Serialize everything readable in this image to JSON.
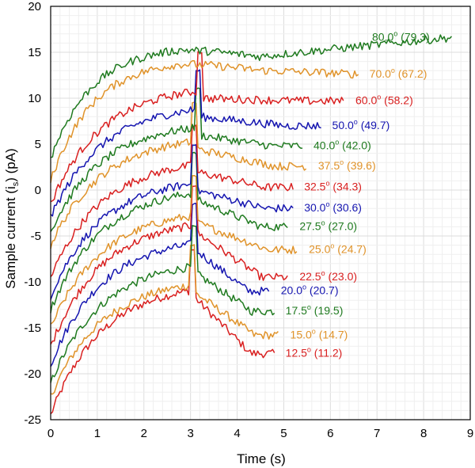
{
  "chart_data": {
    "type": "line",
    "title": "",
    "xlabel": "Time (s)",
    "ylabel_parts": [
      "Sample current (i",
      "s",
      ") (pA)"
    ],
    "xlim": [
      0,
      9
    ],
    "ylim": [
      -25,
      20
    ],
    "xticks": [
      0,
      1,
      2,
      3,
      4,
      5,
      6,
      7,
      8,
      9
    ],
    "yticks": [
      -25,
      -20,
      -15,
      -10,
      -5,
      0,
      5,
      10,
      15,
      20
    ],
    "grid": true,
    "legend": "inline labels at right end of each series",
    "degree_symbol": "o",
    "colors": {
      "red": "#d92020",
      "orange": "#e0932a",
      "blue": "#1515b0",
      "green": "#1f7a1f"
    },
    "series": [
      {
        "name": "80.0 (79.3)",
        "angle": "80.0",
        "measured": "(79.3)",
        "color": "#1f7a1f",
        "start": 3.5,
        "peak": 15.8,
        "spike_t": null,
        "end_t": 8.6,
        "end_v": 16.6
      },
      {
        "name": "70.0 (67.2)",
        "angle": "70.0",
        "measured": "(67.2)",
        "color": "#e0932a",
        "start": 1.0,
        "peak": 14.3,
        "spike_t": null,
        "end_t": 6.6,
        "end_v": 12.6
      },
      {
        "name": "60.0 (58.2)",
        "angle": "60.0",
        "measured": "(58.2)",
        "color": "#d92020",
        "start": -1.5,
        "peak": 11.5,
        "spike_t": 3.2,
        "end_t": 6.3,
        "end_v": 9.7
      },
      {
        "name": "50.0 (49.7)",
        "angle": "50.0",
        "measured": "(49.7)",
        "color": "#1515b0",
        "start": -3.0,
        "peak": 9.5,
        "spike_t": 3.15,
        "end_t": 5.8,
        "end_v": 7.0
      },
      {
        "name": "40.0 (42.0)",
        "angle": "40.0",
        "measured": "(42.0)",
        "color": "#1f7a1f",
        "start": -4.5,
        "peak": 7.5,
        "spike_t": 3.15,
        "end_t": 5.4,
        "end_v": 4.8
      },
      {
        "name": "37.5 (39.6)",
        "angle": "37.5",
        "measured": "(39.6)",
        "color": "#e0932a",
        "start": -6.0,
        "peak": 6.0,
        "spike_t": 3.1,
        "end_t": 5.5,
        "end_v": 2.6
      },
      {
        "name": "32.5 (34.3)",
        "angle": "32.5",
        "measured": "(34.3)",
        "color": "#d92020",
        "start": -9.5,
        "peak": 3.5,
        "spike_t": 3.1,
        "end_t": 5.2,
        "end_v": 0.3
      },
      {
        "name": "30.0 (30.6)",
        "angle": "30.0",
        "measured": "(30.6)",
        "color": "#1515b0",
        "start": -11.5,
        "peak": 1.5,
        "spike_t": 3.1,
        "end_t": 5.2,
        "end_v": -2.0
      },
      {
        "name": "27.5 (27.0)",
        "angle": "27.5",
        "measured": "(27.0)",
        "color": "#1f7a1f",
        "start": -13.0,
        "peak": 0.5,
        "spike_t": 3.1,
        "end_t": 5.1,
        "end_v": -4.0
      },
      {
        "name": "25.0 (24.7)",
        "angle": "25.0",
        "measured": "(24.7)",
        "color": "#e0932a",
        "start": -15.0,
        "peak": -2.0,
        "spike_t": 3.1,
        "end_t": 5.3,
        "end_v": -6.5
      },
      {
        "name": "22.5 (23.0)",
        "angle": "22.5",
        "measured": "(23.0)",
        "color": "#d92020",
        "start": -17.0,
        "peak": -3.0,
        "spike_t": 3.1,
        "end_t": 5.1,
        "end_v": -9.5
      },
      {
        "name": "20.0 (20.7)",
        "angle": "20.0",
        "measured": "(20.7)",
        "color": "#1515b0",
        "start": -19.0,
        "peak": -5.0,
        "spike_t": 3.1,
        "end_t": 4.7,
        "end_v": -11.0
      },
      {
        "name": "17.5 (19.5)",
        "angle": "17.5",
        "measured": "(19.5)",
        "color": "#1f7a1f",
        "start": -21.0,
        "peak": -7.5,
        "spike_t": 3.1,
        "end_t": 4.8,
        "end_v": -13.2
      },
      {
        "name": "15.0 (14.7)",
        "angle": "15.0",
        "measured": "(14.7)",
        "color": "#e0932a",
        "start": -22.5,
        "peak": -9.5,
        "spike_t": 3.05,
        "end_t": 4.9,
        "end_v": -15.8
      },
      {
        "name": "12.5 (11.2)",
        "angle": "12.5",
        "measured": "(11.2)",
        "color": "#d92020",
        "start": -24.5,
        "peak": -10.0,
        "spike_t": 3.05,
        "end_t": 4.8,
        "end_v": -17.8
      }
    ]
  }
}
